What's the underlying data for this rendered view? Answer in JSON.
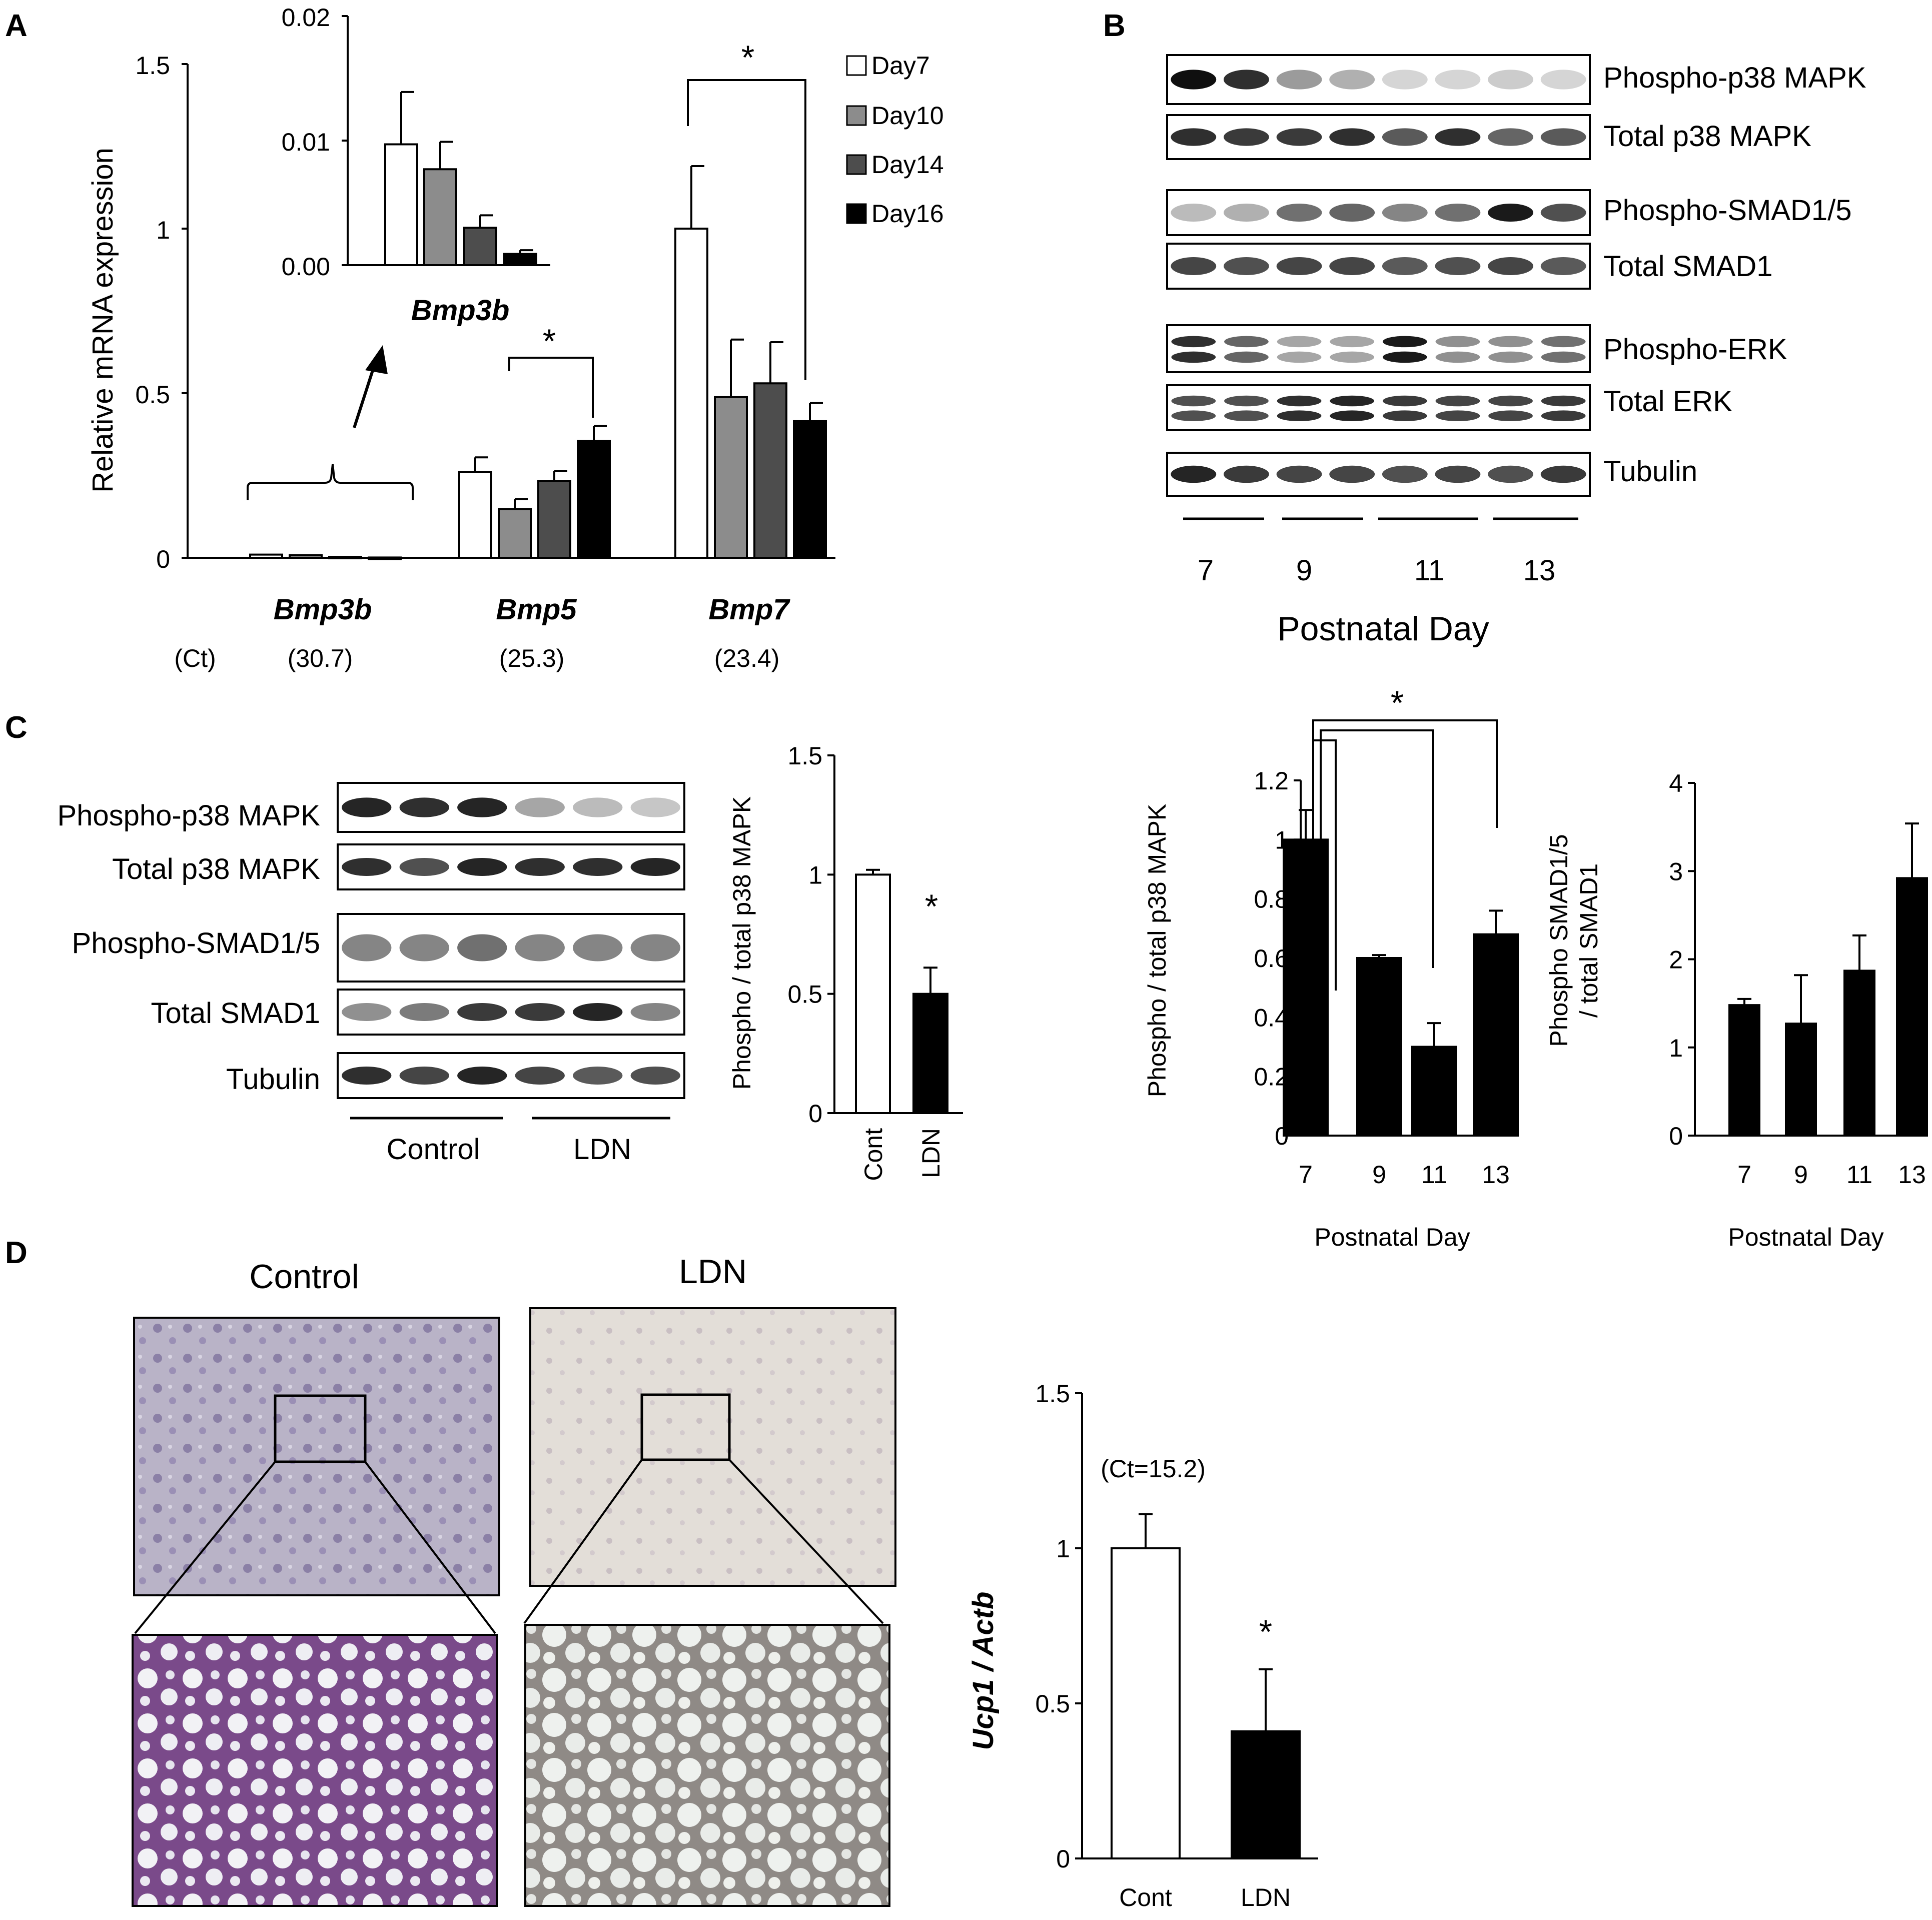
{
  "panels": {
    "a": "A",
    "b": "B",
    "c": "C",
    "d": "D"
  },
  "colors": {
    "day7": "#ffffff",
    "day10": "#8c8c8c",
    "day14": "#4d4d4d",
    "day16": "#000000",
    "cont": "#ffffff",
    "ldn": "#000000"
  },
  "panelA": {
    "ylabel": "Relative mRNA expression",
    "legend": [
      "Day7",
      "Day10",
      "Day14",
      "Day16"
    ],
    "ct_label": "(Ct)",
    "gene_labels": [
      "Bmp3b",
      "Bmp5",
      "Bmp7"
    ],
    "ct_values": [
      "(30.7)",
      "(25.3)",
      "(23.4)"
    ],
    "star": "*",
    "inset_label": "Bmp3b"
  },
  "panelB": {
    "blot_labels": [
      "Phospho-p38 MAPK",
      "Total p38 MAPK",
      "Phospho-SMAD1/5",
      "Total SMAD1",
      "Phospho-ERK",
      "Total ERK",
      "Tubulin"
    ],
    "day_labels": [
      "7",
      "9",
      "11",
      "13"
    ],
    "xlabel": "Postnatal Day",
    "left_ylabel": "Phospho / total p38 MAPK",
    "right_ylabel_line1": "Phospho SMAD1/5",
    "right_ylabel_line2": "/ total SMAD1",
    "chart_xlabel": "Postnatal Day",
    "star": "*"
  },
  "panelC": {
    "blot_labels": [
      "Phospho-p38 MAPK",
      "Total p38 MAPK",
      "Phospho-SMAD1/5",
      "Total SMAD1",
      "Tubulin"
    ],
    "group_labels": [
      "Control",
      "LDN"
    ],
    "ylabel": "Phospho / total p38 MAPK",
    "star": "*"
  },
  "panelD": {
    "image_titles": [
      "Control",
      "LDN"
    ],
    "ylabel": "Ucp1 / Actb",
    "ct_note": "(Ct=15.2)",
    "star": "*"
  },
  "chart_data": [
    {
      "id": "A-main",
      "type": "bar",
      "ylabel": "Relative mRNA expression",
      "categories": [
        "Bmp3b",
        "Bmp5",
        "Bmp7"
      ],
      "series": [
        {
          "name": "Day7",
          "values": [
            0.0097,
            0.26,
            1.0
          ],
          "errors": [
            0.0042,
            0.045,
            0.19
          ]
        },
        {
          "name": "Day10",
          "values": [
            0.0077,
            0.148,
            0.488
          ],
          "errors": [
            0.0022,
            0.03,
            0.175
          ]
        },
        {
          "name": "Day14",
          "values": [
            0.003,
            0.233,
            0.53
          ],
          "errors": [
            0.001,
            0.03,
            0.125
          ]
        },
        {
          "name": "Day16",
          "values": [
            0.0009,
            0.355,
            0.415
          ],
          "errors": [
            0.0003,
            0.045,
            0.055
          ]
        }
      ],
      "ylim": [
        0,
        1.5
      ],
      "yticks": [
        "0",
        "0.5",
        "1",
        "1.5"
      ]
    },
    {
      "id": "A-inset",
      "type": "bar",
      "categories": [
        "Day7",
        "Day10",
        "Day14",
        "Day16"
      ],
      "values": [
        0.0097,
        0.0077,
        0.003,
        0.0009
      ],
      "errors": [
        0.0042,
        0.0022,
        0.001,
        0.0003
      ],
      "ylim": [
        0,
        0.02
      ],
      "yticks": [
        "0.00",
        "0.01",
        "0.02"
      ]
    },
    {
      "id": "B-p38",
      "type": "bar",
      "xlabel": "Postnatal Day",
      "ylabel": "Phospho / total p38 MAPK",
      "categories": [
        "7",
        "9",
        "11",
        "13"
      ],
      "values": [
        1.0,
        0.6,
        0.3,
        0.68
      ],
      "errors": [
        0.1,
        0.01,
        0.08,
        0.08
      ],
      "ylim": [
        0,
        1.2
      ],
      "yticks": [
        "0",
        "0.2",
        "0.4",
        "0.6",
        "0.8",
        "1",
        "1.2"
      ]
    },
    {
      "id": "B-smad",
      "type": "bar",
      "xlabel": "Postnatal Day",
      "categories": [
        "7",
        "9",
        "11",
        "13"
      ],
      "values": [
        1.48,
        1.27,
        1.87,
        2.92
      ],
      "errors": [
        0.07,
        0.55,
        0.4,
        0.62
      ],
      "ylim": [
        0,
        4
      ],
      "yticks": [
        "0",
        "1",
        "2",
        "3",
        "4"
      ]
    },
    {
      "id": "C-p38",
      "type": "bar",
      "ylabel": "Phospho / total p38 MAPK",
      "categories": [
        "Cont",
        "LDN"
      ],
      "values": [
        1.0,
        0.5
      ],
      "errors": [
        0.02,
        0.11
      ],
      "ylim": [
        0,
        1.5
      ],
      "yticks": [
        "0",
        "0.5",
        "1",
        "1.5"
      ]
    },
    {
      "id": "D-ucp1",
      "type": "bar",
      "ylabel": "Ucp1 / Actb",
      "categories": [
        "Cont",
        "LDN"
      ],
      "values": [
        1.0,
        0.41
      ],
      "errors": [
        0.11,
        0.2
      ],
      "ylim": [
        0,
        1.5
      ],
      "yticks": [
        "0",
        "0.5",
        "1",
        "1.5"
      ]
    }
  ]
}
